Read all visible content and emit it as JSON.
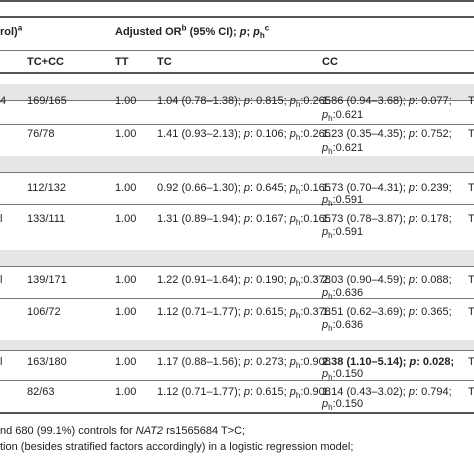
{
  "header": {
    "left_fragment": "rol)",
    "left_sup": "a",
    "adj_title": "Adjusted OR",
    "adj_sup_b": "b",
    "adj_mid": " (95% CI); ",
    "adj_p": "p",
    "adj_semi": "; ",
    "adj_ph": "p",
    "adj_ph_sub": "h",
    "adj_sup_c": "c",
    "col_tccc": "TC+CC",
    "col_tt": "TT",
    "col_tc": "TC",
    "col_cc": "CC"
  },
  "rows": [
    {
      "lead": "4",
      "tccc": "169/165",
      "tt": "1.00",
      "tc": "1.04 (0.78–1.38); ",
      "tc_p": "p",
      "tc_mid": ": 0.815; ",
      "tc_ph": "p",
      "tc_ph_sub": "h",
      "tc_end": ":0.265",
      "cc1": "1.86 (0.94–3.68); ",
      "cc_p": "p",
      "cc_mid": ": 0.077;",
      "cc2_ph": "p",
      "cc2_ph_sub": "h",
      "cc2_end": ":0.621",
      "tail": "T"
    },
    {
      "lead": "",
      "tccc": "76/78",
      "tt": "1.00",
      "tc": "1.41 (0.93–2.13); ",
      "tc_p": "p",
      "tc_mid": ": 0.106; ",
      "tc_ph": "p",
      "tc_ph_sub": "h",
      "tc_end": ":0.265",
      "cc1": "1.23 (0.35–4.35); ",
      "cc_p": "p",
      "cc_mid": ": 0.752;",
      "cc2_ph": "p",
      "cc2_ph_sub": "h",
      "cc2_end": ":0.621",
      "tail": "T"
    },
    {
      "lead": "",
      "tccc": "112/132",
      "tt": "1.00",
      "tc": "0.92 (0.66–1.30); ",
      "tc_p": "p",
      "tc_mid": ": 0.645; ",
      "tc_ph": "p",
      "tc_ph_sub": "h",
      "tc_end": ":0.165",
      "cc1": "1.73 (0.70–4.31); ",
      "cc_p": "p",
      "cc_mid": ": 0.239;",
      "cc2_ph": "p",
      "cc2_ph_sub": "h",
      "cc2_end": ":0.591",
      "tail": "T"
    },
    {
      "lead": "l",
      "tccc": "133/111",
      "tt": "1.00",
      "tc": "1.31 (0.89–1.94); ",
      "tc_p": "p",
      "tc_mid": ": 0.167; ",
      "tc_ph": "p",
      "tc_ph_sub": "h",
      "tc_end": ":0.165",
      "cc1": "1.73 (0.78–3.87); ",
      "cc_p": "p",
      "cc_mid": ": 0.178;",
      "cc2_ph": "p",
      "cc2_ph_sub": "h",
      "cc2_end": ":0.591",
      "tail": "T"
    },
    {
      "lead": "l",
      "tccc": "139/171",
      "tt": "1.00",
      "tc": "1.22 (0.91–1.64); ",
      "tc_p": "p",
      "tc_mid": ": 0.190; ",
      "tc_ph": "p",
      "tc_ph_sub": "h",
      "tc_end": ":0.378",
      "cc1": "2.03 (0.90–4.59); ",
      "cc_p": "p",
      "cc_mid": ": 0.088;",
      "cc2_ph": "p",
      "cc2_ph_sub": "h",
      "cc2_end": ":0.636",
      "tail": "T"
    },
    {
      "lead": "",
      "tccc": "106/72",
      "tt": "1.00",
      "tc": "1.12 (0.71–1.77); ",
      "tc_p": "p",
      "tc_mid": ": 0.615; ",
      "tc_ph": "p",
      "tc_ph_sub": "h",
      "tc_end": ":0.378",
      "cc1": "1.51 (0.62–3.69); ",
      "cc_p": "p",
      "cc_mid": ": 0.365;",
      "cc2_ph": "p",
      "cc2_ph_sub": "h",
      "cc2_end": ":0.636",
      "tail": "T"
    },
    {
      "lead": "l",
      "tccc": "163/180",
      "tt": "1.00",
      "tc": "1.17 (0.88–1.56); ",
      "tc_p": "p",
      "tc_mid": ": 0.273; ",
      "tc_ph": "p",
      "tc_ph_sub": "h",
      "tc_end": ":0.908",
      "cc1": "2.38 (1.10–5.14); ",
      "cc_p": "p",
      "cc_mid": ": 0.028;",
      "cc2_ph": "p",
      "cc2_ph_sub": "h",
      "cc2_end": ":0.150",
      "tail": "T",
      "cc_bold": true
    },
    {
      "lead": "",
      "tccc": "82/63",
      "tt": "1.00",
      "tc": "1.12 (0.71–1.77); ",
      "tc_p": "p",
      "tc_mid": ": 0.615; ",
      "tc_ph": "p",
      "tc_ph_sub": "h",
      "tc_end": ":0.908",
      "cc1": "1.14 (0.43–3.02); ",
      "cc_p": "p",
      "cc_mid": ": 0.794;",
      "cc2_ph": "p",
      "cc2_ph_sub": "h",
      "cc2_end": ":0.150",
      "tail": "T"
    }
  ],
  "footnotes": {
    "line1_a": "nd 680 (99.1%) controls for ",
    "line1_gene": "NAT2",
    "line1_b": " rs1565684 T>C;",
    "line2": "tion (besides stratified factors accordingly) in a logistic regression model;"
  }
}
